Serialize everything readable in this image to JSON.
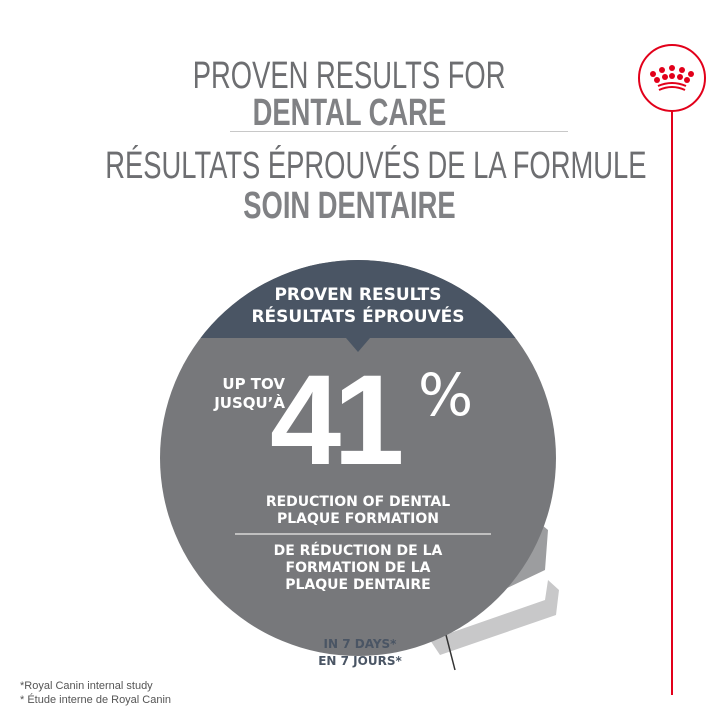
{
  "header": {
    "line1": "PROVEN RESULTS FOR",
    "line2": "DENTAL CARE",
    "line3": "RÉSULTATS ÉPROUVÉS DE LA FORMULE",
    "line4": "SOIN DENTAIRE"
  },
  "badge": {
    "banner_line1": "PROVEN RESULTS",
    "banner_line2": "RÉSULTATS ÉPROUVÉS",
    "prefix_line1": "UP TOV",
    "prefix_line2": "JUSQU’À",
    "value": "41",
    "unit": "%",
    "en_line1": "REDUCTION OF DENTAL",
    "en_line2": "PLAQUE FORMATION",
    "fr_line1": "DE RÉDUCTION DE LA",
    "fr_line2": "FORMATION DE LA",
    "fr_line3": "PLAQUE DENTAIRE",
    "time_en": "IN 7 DAYS*",
    "time_fr": "EN 7 JOURS*"
  },
  "footnotes": [
    "*Royal Canin internal study",
    "* Étude interne de Royal Canin"
  ],
  "logo": {
    "icon": "royal-canin-crown-icon"
  },
  "colors": {
    "circle": "#77787b",
    "banner": "#4a5564",
    "brand_red": "#e2001a",
    "title": "#6d6e71"
  }
}
